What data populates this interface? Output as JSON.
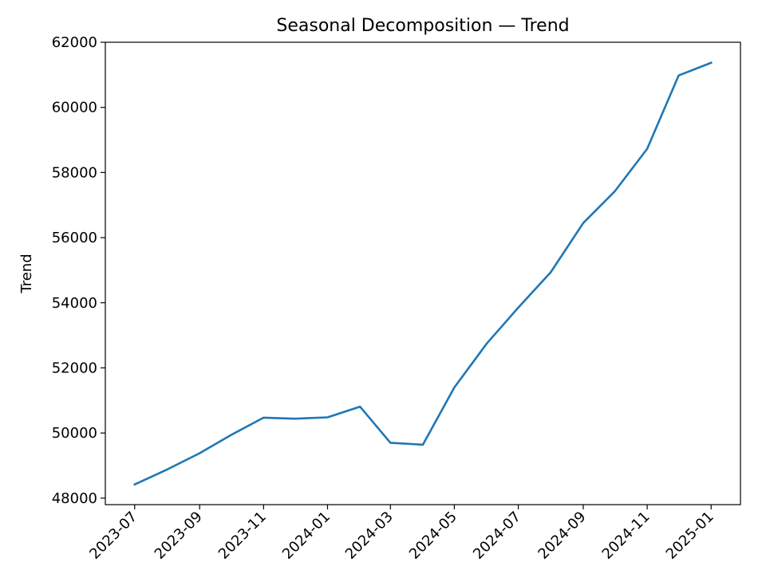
{
  "chart_data": {
    "type": "line",
    "title": "Seasonal Decomposition — Trend",
    "xlabel": "",
    "ylabel": "Trend",
    "ylim": [
      47800,
      62000
    ],
    "xlim": [
      "2023-06-03",
      "2025-01-29"
    ],
    "grid": false,
    "legend": "none",
    "y_ticks": [
      48000,
      50000,
      52000,
      54000,
      56000,
      58000,
      60000,
      62000
    ],
    "x_ticks": [
      "2023-07",
      "2023-09",
      "2023-11",
      "2024-01",
      "2024-03",
      "2024-05",
      "2024-07",
      "2024-09",
      "2024-11",
      "2025-01"
    ],
    "series": [
      {
        "color": "#1f77b4",
        "x": [
          "2023-07-01",
          "2023-08-01",
          "2023-09-01",
          "2023-10-01",
          "2023-11-01",
          "2023-12-01",
          "2024-01-01",
          "2024-02-01",
          "2024-03-01",
          "2024-04-01",
          "2024-05-01",
          "2024-06-01",
          "2024-07-01",
          "2024-08-01",
          "2024-09-01",
          "2024-10-01",
          "2024-11-01",
          "2024-12-01",
          "2025-01-01"
        ],
        "values": [
          48420,
          48880,
          49380,
          49940,
          50470,
          50440,
          50480,
          50810,
          49700,
          49640,
          51400,
          52750,
          53850,
          54940,
          56450,
          57420,
          58730,
          60980,
          61370
        ]
      }
    ]
  }
}
